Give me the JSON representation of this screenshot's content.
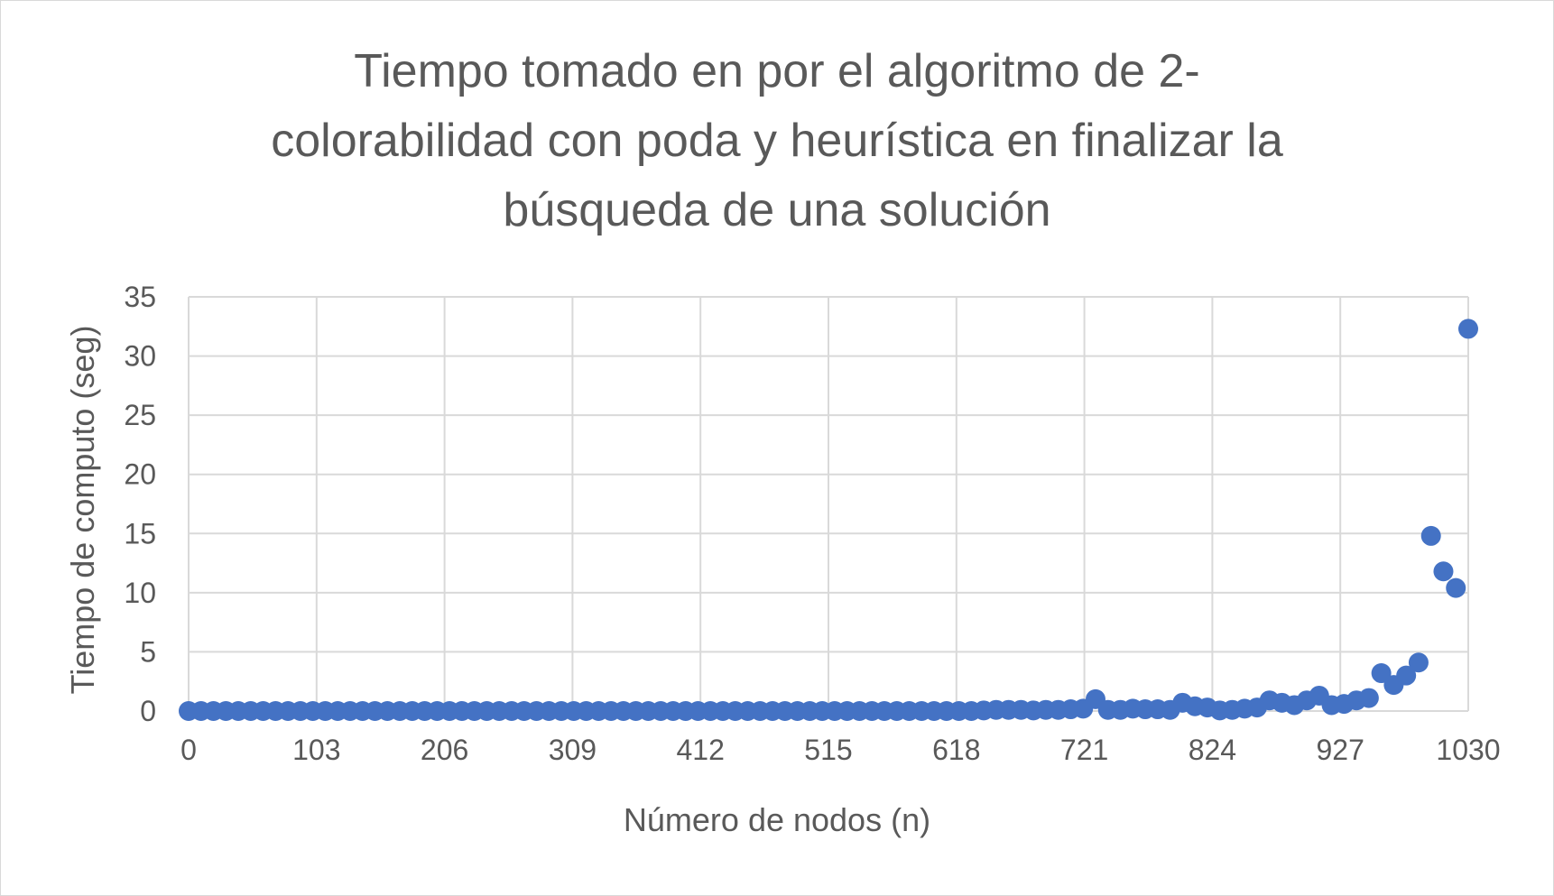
{
  "chart_data": {
    "type": "scatter",
    "title_lines": [
      "Tiempo tomado en por el algoritmo de 2-",
      "colorabilidad con poda y heurística en finalizar la",
      "búsqueda de una solución"
    ],
    "xlabel": "Número de nodos (n)",
    "ylabel": "Tiempo de computo (seg)",
    "xlim": [
      0,
      1030
    ],
    "ylim": [
      0,
      35
    ],
    "x_ticks": [
      0,
      103,
      206,
      309,
      412,
      515,
      618,
      721,
      824,
      927,
      1030
    ],
    "y_ticks": [
      0,
      5,
      10,
      15,
      20,
      25,
      30,
      35
    ],
    "grid": true,
    "legend": "none",
    "marker_color": "#4472c4",
    "series": [
      {
        "x": [
          0,
          10,
          20,
          30,
          40,
          50,
          60,
          70,
          80,
          90,
          100,
          110,
          120,
          130,
          140,
          150,
          160,
          170,
          180,
          190,
          200,
          210,
          220,
          230,
          240,
          250,
          260,
          270,
          280,
          290,
          300,
          310,
          320,
          330,
          340,
          350,
          360,
          370,
          380,
          390,
          400,
          410,
          420,
          430,
          440,
          450,
          460,
          470,
          480,
          490,
          500,
          510,
          520,
          530,
          540,
          550,
          560,
          570,
          580,
          590,
          600,
          610,
          620,
          630,
          640,
          650,
          660,
          670,
          680,
          690,
          700,
          710,
          720,
          730,
          740,
          750,
          760,
          770,
          780,
          790,
          800,
          810,
          820,
          830,
          840,
          850,
          860,
          870,
          880,
          890,
          900,
          910,
          920,
          930,
          940,
          950,
          960,
          970,
          980,
          990,
          1000,
          1010,
          1020,
          1030
        ],
        "y": [
          0,
          0,
          0,
          0,
          0,
          0,
          0,
          0,
          0,
          0,
          0,
          0,
          0,
          0,
          0,
          0,
          0,
          0,
          0,
          0,
          0,
          0,
          0,
          0,
          0,
          0,
          0,
          0,
          0,
          0,
          0,
          0,
          0,
          0,
          0,
          0,
          0,
          0,
          0,
          0,
          0,
          0,
          0,
          0,
          0,
          0,
          0,
          0,
          0,
          0,
          0,
          0,
          0,
          0,
          0,
          0,
          0,
          0,
          0,
          0,
          0,
          0,
          0,
          0,
          0.05,
          0.1,
          0.1,
          0.1,
          0.05,
          0.1,
          0.1,
          0.15,
          0.2,
          1.0,
          0.1,
          0.1,
          0.2,
          0.15,
          0.15,
          0.1,
          0.7,
          0.4,
          0.3,
          0.05,
          0.1,
          0.2,
          0.3,
          0.9,
          0.7,
          0.5,
          0.9,
          1.3,
          0.5,
          0.6,
          0.9,
          1.1,
          3.2,
          2.2,
          3.0,
          4.1,
          14.8,
          11.8,
          10.4,
          32.3
        ]
      }
    ]
  }
}
